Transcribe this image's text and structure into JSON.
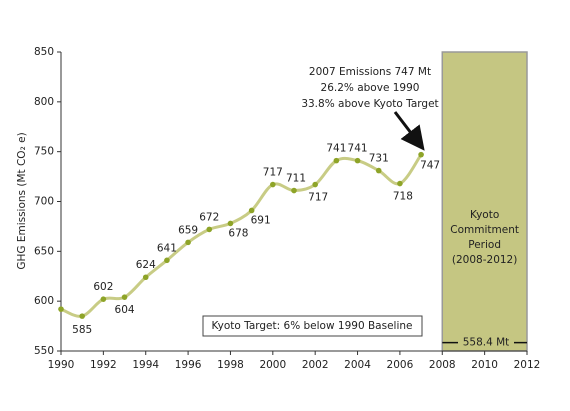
{
  "chart_data": {
    "type": "line",
    "y_label": "GHG Emissions (Mt CO₂ e)",
    "x": [
      1990,
      1991,
      1992,
      1993,
      1994,
      1995,
      1996,
      1997,
      1998,
      1999,
      2000,
      2001,
      2002,
      2003,
      2004,
      2005,
      2006,
      2007
    ],
    "series": [
      {
        "color": "#c8cc85",
        "marker_color": "#8ea428",
        "values": [
          592,
          585,
          602,
          604,
          624,
          641,
          659,
          672,
          678,
          691,
          717,
          711,
          717,
          741,
          741,
          731,
          718,
          747
        ],
        "value_labels": [
          null,
          "585",
          "602",
          "604",
          "624",
          "641",
          "659",
          "672",
          "678",
          "691",
          "717",
          "711",
          "717",
          "741",
          "741",
          "731",
          "718",
          "747"
        ]
      }
    ],
    "xlim": [
      1990,
      2012
    ],
    "xticks": [
      1990,
      1992,
      1994,
      1996,
      1998,
      2000,
      2002,
      2004,
      2006,
      2008,
      2010,
      2012
    ],
    "ylim": [
      550,
      850
    ],
    "yticks": [
      550,
      600,
      650,
      700,
      750,
      800,
      850
    ],
    "annotation": [
      "2007 Emissions 747 Mt",
      "26.2% above 1990",
      "33.8% above Kyoto Target"
    ],
    "kyoto_target_note": "Kyoto Target: 6% below 1990 Baseline",
    "commitment_period": {
      "start": 2008,
      "end": 2012,
      "color": "#c5c682",
      "label": [
        "Kyoto",
        "Commitment",
        "Period",
        "(2008-2012)"
      ]
    },
    "kyoto_target": {
      "value": 558.4,
      "label": "558.4 Mt"
    }
  }
}
